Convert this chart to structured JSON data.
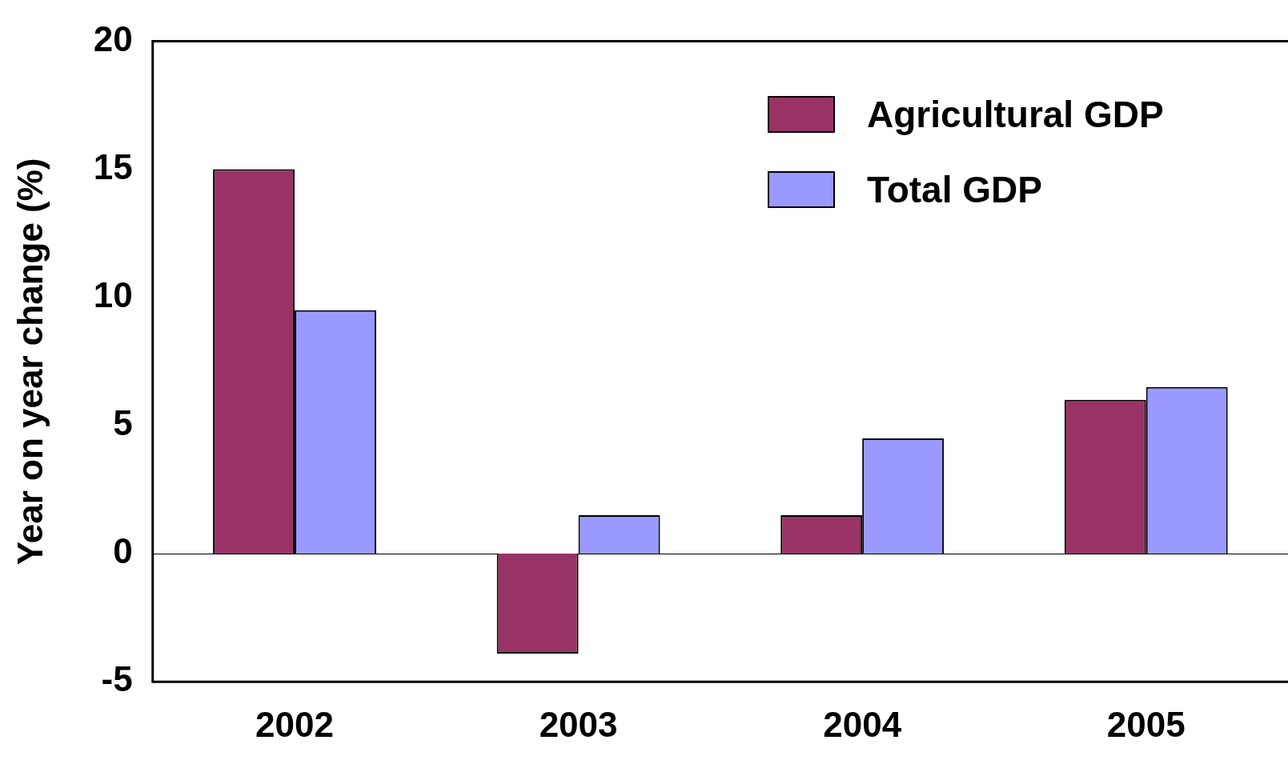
{
  "chart_data": {
    "type": "bar",
    "ylabel": "Year on year change (%)",
    "categories": [
      "2002",
      "2003",
      "2004",
      "2005"
    ],
    "series": [
      {
        "name": "Agricultural GDP",
        "color": "#993366",
        "values": [
          15,
          -3.9,
          1.5,
          6
        ]
      },
      {
        "name": "Total GDP",
        "color": "#9999ff",
        "values": [
          9.5,
          1.5,
          4.5,
          6.5
        ]
      }
    ],
    "ylim": [
      -5,
      20
    ],
    "yticks": [
      -5,
      0,
      5,
      10,
      15,
      20
    ],
    "legend": "top right"
  }
}
